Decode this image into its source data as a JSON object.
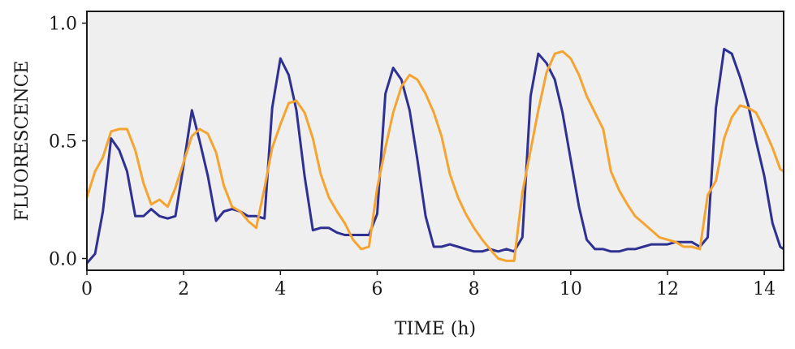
{
  "chart_data": {
    "type": "line",
    "title": "",
    "xlabel": "TIME (h)",
    "ylabel": "FLUORESCENCE",
    "xlim": [
      0,
      14.4
    ],
    "ylim": [
      -0.05,
      1.05
    ],
    "xticks": [
      0,
      2,
      4,
      6,
      8,
      10,
      12,
      14
    ],
    "xtick_labels": [
      "0",
      "2",
      "4",
      "6",
      "8",
      "10",
      "12",
      "14"
    ],
    "yticks": [
      0.0,
      0.5,
      1.0
    ],
    "ytick_labels": [
      "0.0",
      "0.5",
      "1.0"
    ],
    "grid": false,
    "background": "#efefef",
    "series": [
      {
        "name": "navy",
        "color": "#2e3192",
        "x": [
          0,
          0.17,
          0.33,
          0.5,
          0.67,
          0.83,
          1.0,
          1.17,
          1.33,
          1.5,
          1.67,
          1.83,
          2.0,
          2.17,
          2.33,
          2.5,
          2.67,
          2.83,
          3.0,
          3.17,
          3.33,
          3.5,
          3.67,
          3.83,
          4.0,
          4.17,
          4.33,
          4.5,
          4.67,
          4.83,
          5.0,
          5.17,
          5.33,
          5.5,
          5.67,
          5.83,
          6.0,
          6.17,
          6.33,
          6.5,
          6.67,
          6.83,
          7.0,
          7.17,
          7.33,
          7.5,
          7.67,
          7.83,
          8.0,
          8.17,
          8.33,
          8.5,
          8.67,
          8.83,
          9.0,
          9.17,
          9.33,
          9.5,
          9.67,
          9.83,
          10.0,
          10.17,
          10.33,
          10.5,
          10.67,
          10.83,
          11.0,
          11.17,
          11.33,
          11.5,
          11.67,
          11.83,
          12.0,
          12.17,
          12.33,
          12.5,
          12.67,
          12.83,
          13.0,
          13.17,
          13.33,
          13.5,
          13.67,
          13.83,
          14.0,
          14.17,
          14.33,
          14.4
        ],
        "y": [
          -0.02,
          0.02,
          0.2,
          0.51,
          0.46,
          0.37,
          0.18,
          0.18,
          0.21,
          0.18,
          0.17,
          0.18,
          0.4,
          0.63,
          0.5,
          0.35,
          0.16,
          0.2,
          0.21,
          0.2,
          0.18,
          0.18,
          0.17,
          0.64,
          0.85,
          0.78,
          0.63,
          0.35,
          0.12,
          0.13,
          0.13,
          0.11,
          0.1,
          0.1,
          0.1,
          0.1,
          0.19,
          0.7,
          0.81,
          0.76,
          0.63,
          0.42,
          0.18,
          0.05,
          0.05,
          0.06,
          0.05,
          0.04,
          0.03,
          0.03,
          0.04,
          0.03,
          0.04,
          0.03,
          0.09,
          0.69,
          0.87,
          0.83,
          0.76,
          0.62,
          0.42,
          0.22,
          0.08,
          0.04,
          0.04,
          0.03,
          0.03,
          0.04,
          0.04,
          0.05,
          0.06,
          0.06,
          0.06,
          0.07,
          0.07,
          0.07,
          0.05,
          0.09,
          0.64,
          0.89,
          0.87,
          0.77,
          0.65,
          0.5,
          0.35,
          0.15,
          0.05,
          0.04
        ]
      },
      {
        "name": "orange",
        "color": "#f5a431",
        "x": [
          0,
          0.17,
          0.33,
          0.5,
          0.67,
          0.83,
          1.0,
          1.17,
          1.33,
          1.5,
          1.67,
          1.83,
          2.0,
          2.17,
          2.33,
          2.5,
          2.67,
          2.83,
          3.0,
          3.17,
          3.33,
          3.5,
          3.67,
          3.83,
          4.0,
          4.17,
          4.33,
          4.5,
          4.67,
          4.83,
          5.0,
          5.17,
          5.33,
          5.5,
          5.67,
          5.83,
          6.0,
          6.17,
          6.33,
          6.5,
          6.67,
          6.83,
          7.0,
          7.17,
          7.33,
          7.5,
          7.67,
          7.83,
          8.0,
          8.17,
          8.33,
          8.5,
          8.67,
          8.83,
          9.0,
          9.17,
          9.33,
          9.5,
          9.67,
          9.83,
          10.0,
          10.17,
          10.33,
          10.5,
          10.67,
          10.83,
          11.0,
          11.17,
          11.33,
          11.5,
          11.67,
          11.83,
          12.0,
          12.17,
          12.33,
          12.5,
          12.67,
          12.83,
          13.0,
          13.17,
          13.33,
          13.5,
          13.67,
          13.83,
          14.0,
          14.17,
          14.33,
          14.4
        ],
        "y": [
          0.26,
          0.37,
          0.43,
          0.54,
          0.55,
          0.55,
          0.46,
          0.32,
          0.23,
          0.25,
          0.22,
          0.3,
          0.41,
          0.52,
          0.55,
          0.53,
          0.45,
          0.31,
          0.22,
          0.2,
          0.16,
          0.13,
          0.3,
          0.47,
          0.57,
          0.66,
          0.67,
          0.62,
          0.51,
          0.36,
          0.26,
          0.2,
          0.15,
          0.08,
          0.04,
          0.05,
          0.3,
          0.47,
          0.62,
          0.73,
          0.78,
          0.76,
          0.7,
          0.62,
          0.52,
          0.36,
          0.26,
          0.19,
          0.13,
          0.08,
          0.04,
          0.0,
          -0.01,
          -0.01,
          0.28,
          0.46,
          0.63,
          0.79,
          0.87,
          0.88,
          0.85,
          0.78,
          0.69,
          0.62,
          0.55,
          0.37,
          0.29,
          0.23,
          0.18,
          0.15,
          0.12,
          0.09,
          0.08,
          0.07,
          0.05,
          0.05,
          0.04,
          0.27,
          0.33,
          0.51,
          0.6,
          0.65,
          0.64,
          0.62,
          0.55,
          0.47,
          0.38,
          0.37
        ]
      }
    ]
  }
}
